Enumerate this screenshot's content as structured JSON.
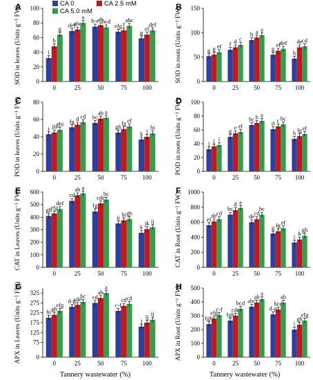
{
  "legend": [
    {
      "label": "CA 0",
      "color": "#2e3f9e"
    },
    {
      "label": "CA 2.5 mM",
      "color": "#c0191f"
    },
    {
      "label": "CA 5.0 mM",
      "color": "#3a9b4f"
    }
  ],
  "chart_data": [
    {
      "panel": "A",
      "type": "bar",
      "ylabel": "SOD in leaves (Units g⁻¹ FW)",
      "categories": [
        "0",
        "25",
        "50",
        "75",
        "100"
      ],
      "ylim": [
        0,
        100
      ],
      "yticks": [
        0,
        20,
        40,
        60,
        80,
        100
      ],
      "series": [
        {
          "name": "CA 0",
          "values": [
            32,
            69,
            75,
            68,
            59
          ]
        },
        {
          "name": "CA 2.5 mM",
          "values": [
            48,
            71,
            77,
            70,
            64
          ]
        },
        {
          "name": "CA 5.0 mM",
          "values": [
            64,
            80,
            74,
            76,
            70
          ]
        }
      ],
      "labels": [
        [
          "i",
          "h",
          "g"
        ],
        [
          "def",
          "abc",
          "a"
        ],
        [
          "b-e",
          "ab",
          "bcd"
        ],
        [
          "efg",
          "f",
          "abc"
        ],
        [
          "g",
          "ef",
          "def"
        ]
      ]
    },
    {
      "panel": "B",
      "type": "bar",
      "ylabel": "SOD in roots (Units g⁻¹ FW)",
      "categories": [
        "0",
        "25",
        "50",
        "75",
        "100"
      ],
      "ylim": [
        0,
        150
      ],
      "yticks": [
        0,
        50,
        100,
        150
      ],
      "series": [
        {
          "name": "CA 0",
          "values": [
            52,
            65,
            85,
            55,
            47
          ]
        },
        {
          "name": "CA 2.5 mM",
          "values": [
            55,
            70,
            90,
            63,
            70
          ]
        },
        {
          "name": "CA 5.0 mM",
          "values": [
            60,
            75,
            95,
            67,
            72
          ]
        }
      ],
      "labels": [
        [
          "g",
          "g",
          "ef"
        ],
        [
          "f",
          "d",
          "c"
        ],
        [
          "b",
          "a",
          "a"
        ],
        [
          "g",
          "ef",
          "def"
        ],
        [
          "h",
          "de",
          "cd"
        ]
      ]
    },
    {
      "panel": "C",
      "type": "bar",
      "ylabel": "POD in leaves (Units g⁻¹ FW)",
      "categories": [
        "0",
        "25",
        "50",
        "75",
        "100"
      ],
      "ylim": [
        0,
        80
      ],
      "yticks": [
        0,
        20,
        40,
        60,
        80
      ],
      "series": [
        {
          "name": "CA 0",
          "values": [
            43,
            51,
            56,
            45,
            37
          ]
        },
        {
          "name": "CA 2.5 mM",
          "values": [
            45,
            54,
            61,
            49,
            40
          ]
        },
        {
          "name": "CA 5.0 mM",
          "values": [
            48,
            57,
            62,
            52,
            44
          ]
        }
      ],
      "labels": [
        [
          "j",
          "ih",
          "ghi"
        ],
        [
          "fg",
          "d",
          "cd"
        ],
        [
          "bc",
          "ab",
          "a"
        ],
        [
          "gh",
          "fg",
          "ef"
        ],
        [
          "k",
          "j",
          "hi"
        ]
      ]
    },
    {
      "panel": "D",
      "type": "bar",
      "ylabel": "POD in roots (Units g⁻¹ FW)",
      "categories": [
        "0",
        "25",
        "50",
        "75",
        "100"
      ],
      "ylim": [
        0,
        100
      ],
      "yticks": [
        0,
        20,
        40,
        60,
        80,
        100
      ],
      "series": [
        {
          "name": "CA 0",
          "values": [
            32,
            50,
            67,
            61,
            47
          ]
        },
        {
          "name": "CA 2.5 mM",
          "values": [
            36,
            55,
            70,
            65,
            51
          ]
        },
        {
          "name": "CA 5.0 mM",
          "values": [
            38,
            57,
            73,
            68,
            54
          ]
        }
      ],
      "labels": [
        [
          "j",
          "j",
          "i"
        ],
        [
          "g",
          "e",
          "ef"
        ],
        [
          "bc",
          "b",
          "a"
        ],
        [
          "d",
          "c",
          "bc"
        ],
        [
          "h",
          "fg",
          "ef"
        ]
      ]
    },
    {
      "panel": "E",
      "type": "bar",
      "ylabel": "CAT in Leaves (Units g⁻¹ FW)",
      "categories": [
        "0",
        "25",
        "50",
        "75",
        "100"
      ],
      "ylim": [
        0,
        600
      ],
      "yticks": [
        0,
        100,
        200,
        300,
        400,
        500,
        600
      ],
      "series": [
        {
          "name": "CA 0",
          "values": [
            410,
            530,
            445,
            350,
            275
          ]
        },
        {
          "name": "CA 2.5 mM",
          "values": [
            430,
            575,
            510,
            375,
            305
          ]
        },
        {
          "name": "CA 5.0 mM",
          "values": [
            465,
            590,
            540,
            385,
            320
          ]
        }
      ],
      "labels": [
        [
          "gh",
          "efg",
          "def"
        ],
        [
          "cd",
          "ab",
          "a"
        ],
        [
          "fg",
          "cde",
          "bc"
        ],
        [
          "ij",
          "hi",
          "gh"
        ],
        [
          "k",
          "jk",
          "ij"
        ]
      ]
    },
    {
      "panel": "F",
      "type": "bar",
      "ylabel": "CAT in Root (Units g⁻¹ FW)",
      "categories": [
        "0",
        "25",
        "50",
        "75",
        "100"
      ],
      "ylim": [
        0,
        1000
      ],
      "yticks": [
        0,
        200,
        400,
        600,
        800,
        1000
      ],
      "series": [
        {
          "name": "CA 0",
          "values": [
            560,
            700,
            600,
            450,
            330
          ]
        },
        {
          "name": "CA 2.5 mM",
          "values": [
            610,
            760,
            640,
            480,
            370
          ]
        },
        {
          "name": "CA 5.0 mM",
          "values": [
            640,
            790,
            700,
            520,
            420
          ]
        }
      ],
      "labels": [
        [
          "ef",
          "de",
          "cd"
        ],
        [
          "bc",
          "d",
          "a"
        ],
        [
          "de",
          "cd",
          "bc"
        ],
        [
          "g",
          "fg",
          "ef"
        ],
        [
          "i",
          "h",
          "gh"
        ]
      ]
    },
    {
      "panel": "G",
      "type": "bar",
      "ylabel": "APX in Leaves (Units g⁻¹ FW)",
      "categories": [
        "0",
        "25",
        "50",
        "75",
        "100"
      ],
      "ylim": [
        0,
        350
      ],
      "yticks": [
        0,
        75,
        125,
        175,
        225,
        275,
        325
      ],
      "series": [
        {
          "name": "CA 0",
          "values": [
            200,
            255,
            275,
            235,
            155
          ]
        },
        {
          "name": "CA 2.5 mM",
          "values": [
            215,
            265,
            300,
            260,
            175
          ]
        },
        {
          "name": "CA 5.0 mM",
          "values": [
            235,
            280,
            325,
            270,
            190
          ]
        }
      ],
      "labels": [
        [
          "hi",
          "gh",
          "efg"
        ],
        [
          "d-g",
          "cde",
          "bc"
        ],
        [
          "cd",
          "ab",
          "a"
        ],
        [
          "c-f",
          "cd",
          "cd"
        ],
        [
          "j",
          "ij",
          "ij"
        ]
      ]
    },
    {
      "panel": "H",
      "type": "bar",
      "ylabel": "APX in Root (Units g⁻¹ FW)",
      "categories": [
        "0",
        "25",
        "50",
        "75",
        "100"
      ],
      "ylim": [
        0,
        500
      ],
      "yticks": [
        0,
        100,
        200,
        300,
        400,
        500
      ],
      "series": [
        {
          "name": "CA 0",
          "values": [
            240,
            265,
            365,
            310,
            200
          ]
        },
        {
          "name": "CA 2.5 mM",
          "values": [
            280,
            300,
            395,
            345,
            235
          ]
        },
        {
          "name": "CA 5.0 mM",
          "values": [
            305,
            350,
            420,
            395,
            265
          ]
        }
      ],
      "labels": [
        [
          "fgh",
          "efg",
          "c-f"
        ],
        [
          "fgh",
          "cde",
          "bcd"
        ],
        [
          "abc",
          "ab",
          "a"
        ],
        [
          "d-g",
          "bcd",
          "ab"
        ],
        [
          "i",
          "gh",
          "efg"
        ]
      ]
    }
  ],
  "xlabel_left": "Tannery wastewater (%)",
  "xlabel_right": "Tannery wastewater (%)"
}
